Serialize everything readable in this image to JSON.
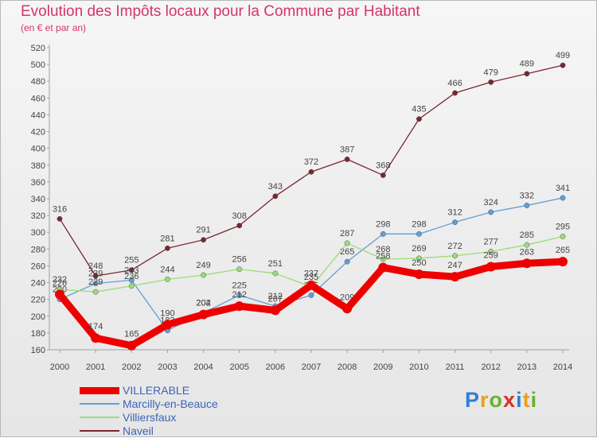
{
  "header": {
    "title": "Evolution des Impôts locaux pour la Commune par Habitant",
    "subtitle": "(en € et par an)"
  },
  "logo": {
    "text": "Proxiti",
    "colors": [
      "#2f7fd6",
      "#e8a218",
      "#67b230",
      "#d92f2f",
      "#2f7fd6",
      "#e8a218",
      "#67b230"
    ]
  },
  "chart_data": {
    "type": "line",
    "x": [
      "2000",
      "2001",
      "2002",
      "2003",
      "2004",
      "2005",
      "2006",
      "2007",
      "2008",
      "2009",
      "2010",
      "2011",
      "2012",
      "2013",
      "2014"
    ],
    "ylim": [
      160,
      520
    ],
    "yticks": [
      160,
      180,
      200,
      220,
      240,
      260,
      280,
      300,
      320,
      340,
      360,
      380,
      400,
      420,
      440,
      460,
      480,
      500,
      520
    ],
    "grid": false,
    "legend_position": "bottom-left",
    "series": [
      {
        "name": "Naveil",
        "color": "#7a2630",
        "width": 1.3,
        "values": [
          316,
          248,
          255,
          281,
          291,
          308,
          343,
          372,
          387,
          368,
          435,
          466,
          479,
          489,
          499
        ]
      },
      {
        "name": "Marcilly-en-Beauce",
        "color": "#5f9fd6",
        "width": 1.3,
        "values": [
          220,
          239,
          243,
          183,
          204,
          225,
          212,
          225,
          265,
          298,
          298,
          312,
          324,
          332,
          341
        ]
      },
      {
        "name": "Villiersfaux",
        "color": "#99dd77",
        "width": 1.3,
        "values": [
          232,
          229,
          236,
          244,
          249,
          256,
          251,
          235,
          287,
          268,
          269,
          272,
          277,
          285,
          295
        ]
      },
      {
        "name": "VILLERABLE",
        "color": "#ee0000",
        "width": 9,
        "values": [
          226,
          174,
          165,
          190,
          202,
          212,
          207,
          237,
          209,
          258,
          250,
          247,
          259,
          263,
          265
        ]
      }
    ],
    "legend_order": [
      "VILLERABLE",
      "Marcilly-en-Beauce",
      "Villiersfaux",
      "Naveil"
    ]
  }
}
